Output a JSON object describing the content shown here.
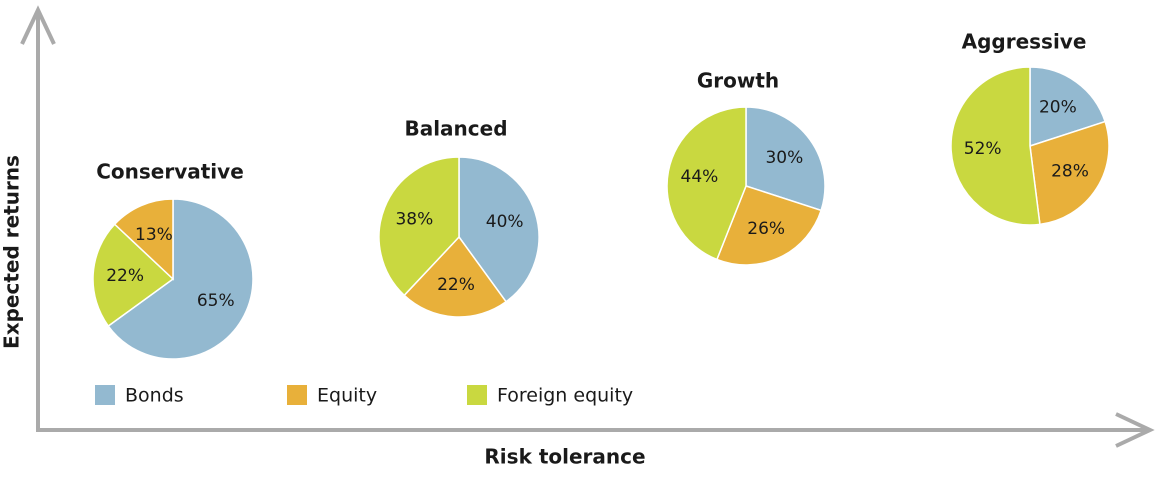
{
  "axes": {
    "x_label": "Risk tolerance",
    "y_label": "Expected returns"
  },
  "legend": [
    {
      "name": "Bonds",
      "color": "#93b9d0"
    },
    {
      "name": "Equity",
      "color": "#e8b03a"
    },
    {
      "name": "Foreign equity",
      "color": "#c9d840"
    }
  ],
  "chart_data": [
    {
      "type": "pie",
      "title": "Conservative",
      "values": [
        65,
        22,
        13
      ],
      "value_labels": [
        "65%",
        "22%",
        "13%"
      ],
      "colors": [
        "#93b9d0",
        "#c9d840",
        "#e8b03a"
      ]
    },
    {
      "type": "pie",
      "title": "Balanced",
      "values": [
        40,
        22,
        38
      ],
      "value_labels": [
        "40%",
        "22%",
        "38%"
      ],
      "colors": [
        "#93b9d0",
        "#e8b03a",
        "#c9d840"
      ]
    },
    {
      "type": "pie",
      "title": "Growth",
      "values": [
        30,
        26,
        44
      ],
      "value_labels": [
        "30%",
        "26%",
        "44%"
      ],
      "colors": [
        "#93b9d0",
        "#e8b03a",
        "#c9d840"
      ]
    },
    {
      "type": "pie",
      "title": "Aggressive",
      "values": [
        20,
        28,
        52
      ],
      "value_labels": [
        "20%",
        "28%",
        "52%"
      ],
      "colors": [
        "#93b9d0",
        "#e8b03a",
        "#c9d840"
      ]
    }
  ]
}
